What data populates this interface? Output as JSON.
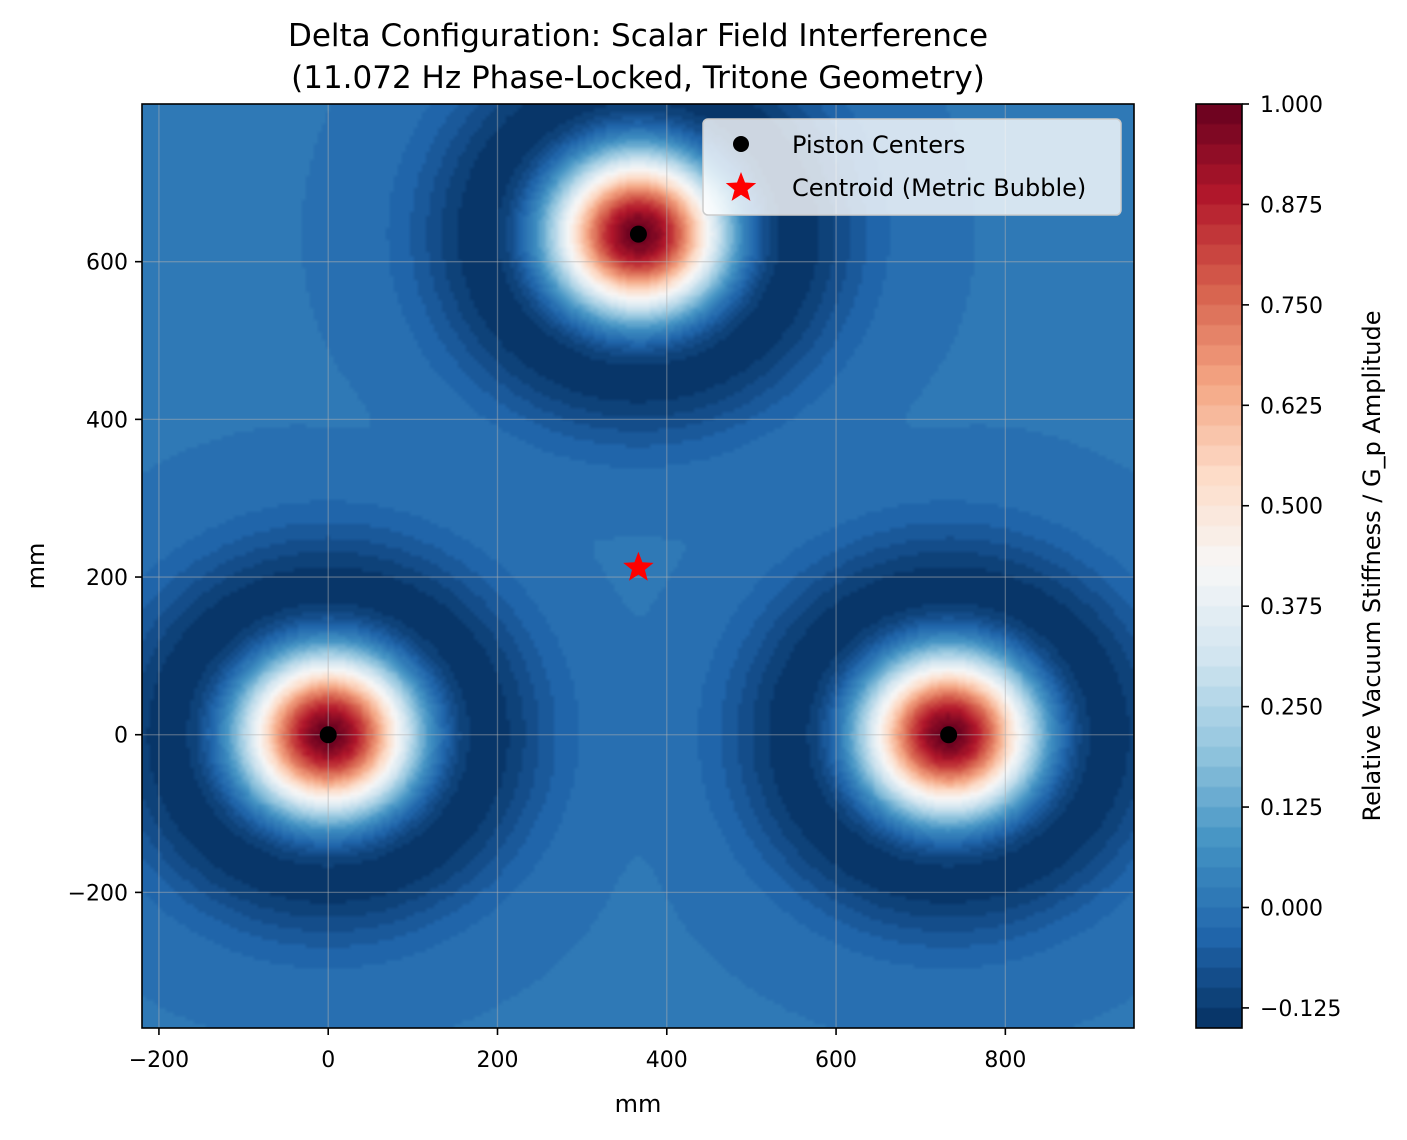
{
  "chart_data": {
    "type": "heatmap",
    "title_line1": "Delta Configuration: Scalar Field Interference",
    "title_line2": "(11.072 Hz Phase-Locked, Tritone Geometry)",
    "xlabel": "mm",
    "ylabel": "mm",
    "xlim": [
      -220,
      952
    ],
    "ylim": [
      -372,
      800
    ],
    "xticks": [
      -200,
      0,
      200,
      400,
      600,
      800
    ],
    "yticks": [
      -200,
      0,
      200,
      400,
      600
    ],
    "xtick_labels": [
      "−200",
      "0",
      "200",
      "400",
      "600",
      "800"
    ],
    "ytick_labels": [
      "−200",
      "0",
      "200",
      "400",
      "600"
    ],
    "grid": true,
    "colormap": "RdBu_r",
    "colorbar": {
      "label": "Relative Vacuum Stiffness / G_p Amplitude",
      "range": [
        -0.15,
        1.0
      ],
      "ticks": [
        -0.125,
        0.0,
        0.125,
        0.25,
        0.375,
        0.5,
        0.625,
        0.75,
        0.875,
        1.0
      ],
      "tick_labels": [
        "−0.125",
        "0.000",
        "0.125",
        "0.250",
        "0.375",
        "0.500",
        "0.625",
        "0.750",
        "0.875",
        "1.000"
      ]
    },
    "series": [
      {
        "name": "Piston Centers",
        "marker": "circle",
        "color": "#000000",
        "points": [
          [
            0,
            0
          ],
          [
            733,
            0
          ],
          [
            366.5,
            635
          ]
        ]
      },
      {
        "name": "Centroid (Metric Bubble)",
        "marker": "star",
        "color": "#ff0000",
        "points": [
          [
            366.5,
            211.7
          ]
        ]
      }
    ],
    "legend_position": "top-right"
  }
}
